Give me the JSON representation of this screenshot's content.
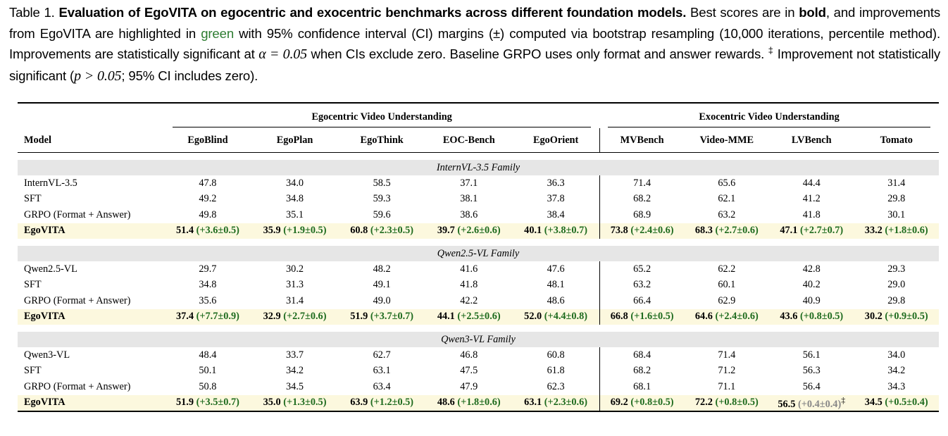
{
  "caption": {
    "label": "Table 1.",
    "title": "Evaluation of EgoVITA on egocentric and exocentric benchmarks across different foundation models.",
    "s1": " Best scores are in ",
    "bold_word": "bold",
    "s2": ", and improvements from EgoVITA are highlighted in ",
    "green_word": "green",
    "s3": " with 95% confidence interval (CI) margins (±) computed via bootstrap resampling (10,000 iterations, percentile method). Improvements are statistically significant at ",
    "alpha": "α = 0.05",
    "s4": " when CIs exclude zero. Baseline GRPO uses only format and answer rewards. ",
    "dagger": "‡",
    "s5": " Improvement not statistically significant (",
    "pval": "p > 0.05",
    "s6": "; 95% CI includes zero)."
  },
  "headers": {
    "ego_group": "Egocentric Video Understanding",
    "exo_group": "Exocentric Video Understanding",
    "model": "Model",
    "columns": [
      "EgoBlind",
      "EgoPlan",
      "EgoThink",
      "EOC-Bench",
      "EgoOrient",
      "MVBench",
      "Video-MME",
      "LVBench",
      "Tomato"
    ]
  },
  "families": [
    {
      "name": "InternVL-3.5 Family",
      "rows": [
        {
          "model": "InternVL-3.5",
          "values": [
            "47.8",
            "34.0",
            "58.5",
            "37.1",
            "36.3",
            "71.4",
            "65.6",
            "44.4",
            "31.4"
          ]
        },
        {
          "model": "SFT",
          "values": [
            "49.2",
            "34.8",
            "59.3",
            "38.1",
            "37.8",
            "68.2",
            "62.1",
            "41.2",
            "29.8"
          ]
        },
        {
          "model": "GRPO (Format + Answer)",
          "values": [
            "49.8",
            "35.1",
            "59.6",
            "38.6",
            "38.4",
            "68.9",
            "63.2",
            "41.8",
            "30.1"
          ]
        }
      ],
      "best": {
        "model": "EgoVITA",
        "values": [
          "51.4",
          "35.9",
          "60.8",
          "39.7",
          "40.1",
          "73.8",
          "68.3",
          "47.1",
          "33.2"
        ],
        "deltas": [
          "(+3.6±0.5)",
          "(+1.9±0.5)",
          "(+2.3±0.5)",
          "(+2.6±0.6)",
          "(+3.8±0.7)",
          "(+2.4±0.6)",
          "(+2.7±0.6)",
          "(+2.7±0.7)",
          "(+1.8±0.6)"
        ],
        "marks": [
          "",
          "",
          "",
          "",
          "",
          "",
          "",
          "",
          ""
        ]
      }
    },
    {
      "name": "Qwen2.5-VL Family",
      "rows": [
        {
          "model": "Qwen2.5-VL",
          "values": [
            "29.7",
            "30.2",
            "48.2",
            "41.6",
            "47.6",
            "65.2",
            "62.2",
            "42.8",
            "29.3"
          ]
        },
        {
          "model": "SFT",
          "values": [
            "34.8",
            "31.3",
            "49.1",
            "41.8",
            "48.1",
            "63.2",
            "60.1",
            "40.2",
            "29.0"
          ]
        },
        {
          "model": "GRPO (Format + Answer)",
          "values": [
            "35.6",
            "31.4",
            "49.0",
            "42.2",
            "48.6",
            "66.4",
            "62.9",
            "40.9",
            "29.8"
          ]
        }
      ],
      "best": {
        "model": "EgoVITA",
        "values": [
          "37.4",
          "32.9",
          "51.9",
          "44.1",
          "52.0",
          "66.8",
          "64.6",
          "43.6",
          "30.2"
        ],
        "deltas": [
          "(+7.7±0.9)",
          "(+2.7±0.6)",
          "(+3.7±0.7)",
          "(+2.5±0.6)",
          "(+4.4±0.8)",
          "(+1.6±0.5)",
          "(+2.4±0.6)",
          "(+0.8±0.5)",
          "(+0.9±0.5)"
        ],
        "marks": [
          "",
          "",
          "",
          "",
          "",
          "",
          "",
          "",
          ""
        ]
      }
    },
    {
      "name": "Qwen3-VL Family",
      "rows": [
        {
          "model": "Qwen3-VL",
          "values": [
            "48.4",
            "33.7",
            "62.7",
            "46.8",
            "60.8",
            "68.4",
            "71.4",
            "56.1",
            "34.0"
          ]
        },
        {
          "model": "SFT",
          "values": [
            "50.1",
            "34.2",
            "63.1",
            "47.5",
            "61.8",
            "68.2",
            "71.2",
            "56.3",
            "34.2"
          ]
        },
        {
          "model": "GRPO (Format + Answer)",
          "values": [
            "50.8",
            "34.5",
            "63.4",
            "47.9",
            "62.3",
            "68.1",
            "71.1",
            "56.4",
            "34.3"
          ]
        }
      ],
      "best": {
        "model": "EgoVITA",
        "values": [
          "51.9",
          "35.0",
          "63.9",
          "48.6",
          "63.1",
          "69.2",
          "72.2",
          "56.5",
          "34.5"
        ],
        "deltas": [
          "(+3.5±0.7)",
          "(+1.3±0.5)",
          "(+1.2±0.5)",
          "(+1.8±0.6)",
          "(+2.3±0.6)",
          "(+0.8±0.5)",
          "(+0.8±0.5)",
          "(+0.4±0.4)",
          "(+0.5±0.4)"
        ],
        "marks": [
          "",
          "",
          "",
          "",
          "",
          "",
          "",
          "‡",
          ""
        ]
      }
    }
  ]
}
